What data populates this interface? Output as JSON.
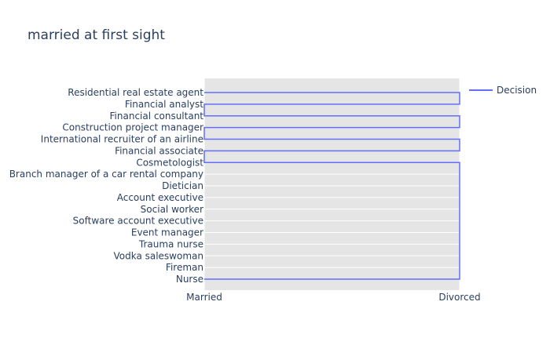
{
  "chart_data": {
    "type": "line",
    "title": "married at first sight",
    "xlabel": "",
    "ylabel": "",
    "x_categories": [
      "Married",
      "Divorced"
    ],
    "y_categories": [
      "Residential real estate agent",
      "Financial analyst",
      "Financial consultant",
      "Construction project manager",
      "International recruiter of an airline",
      "Financial associate",
      "Cosmetologist",
      "Branch manager of a car rental company",
      "Dietician",
      "Account executive",
      "Social worker",
      "Software account executive",
      "Event manager",
      "Trauma nurse",
      "Vodka saleswoman",
      "Fireman",
      "Nurse"
    ],
    "series": [
      {
        "name": "Decision",
        "color": "#636efa",
        "points": [
          {
            "x": "Married",
            "y": "Residential real estate agent"
          },
          {
            "x": "Divorced",
            "y": "Residential real estate agent"
          },
          {
            "x": "Divorced",
            "y": "Financial analyst"
          },
          {
            "x": "Married",
            "y": "Financial analyst"
          },
          {
            "x": "Married",
            "y": "Financial consultant"
          },
          {
            "x": "Divorced",
            "y": "Financial consultant"
          },
          {
            "x": "Divorced",
            "y": "Construction project manager"
          },
          {
            "x": "Married",
            "y": "Construction project manager"
          },
          {
            "x": "Married",
            "y": "International recruiter of an airline"
          },
          {
            "x": "Divorced",
            "y": "International recruiter of an airline"
          },
          {
            "x": "Divorced",
            "y": "Financial associate"
          },
          {
            "x": "Married",
            "y": "Financial associate"
          },
          {
            "x": "Married",
            "y": "Cosmetologist"
          },
          {
            "x": "Divorced",
            "y": "Cosmetologist"
          },
          {
            "x": "Divorced",
            "y": "Nurse"
          },
          {
            "x": "Married",
            "y": "Nurse"
          }
        ]
      }
    ],
    "grid": true,
    "legend_position": "top-right",
    "colors": {
      "plot_background": "#e5e5e5",
      "gridline": "#ffffff",
      "text": "#2a3f5f"
    }
  }
}
